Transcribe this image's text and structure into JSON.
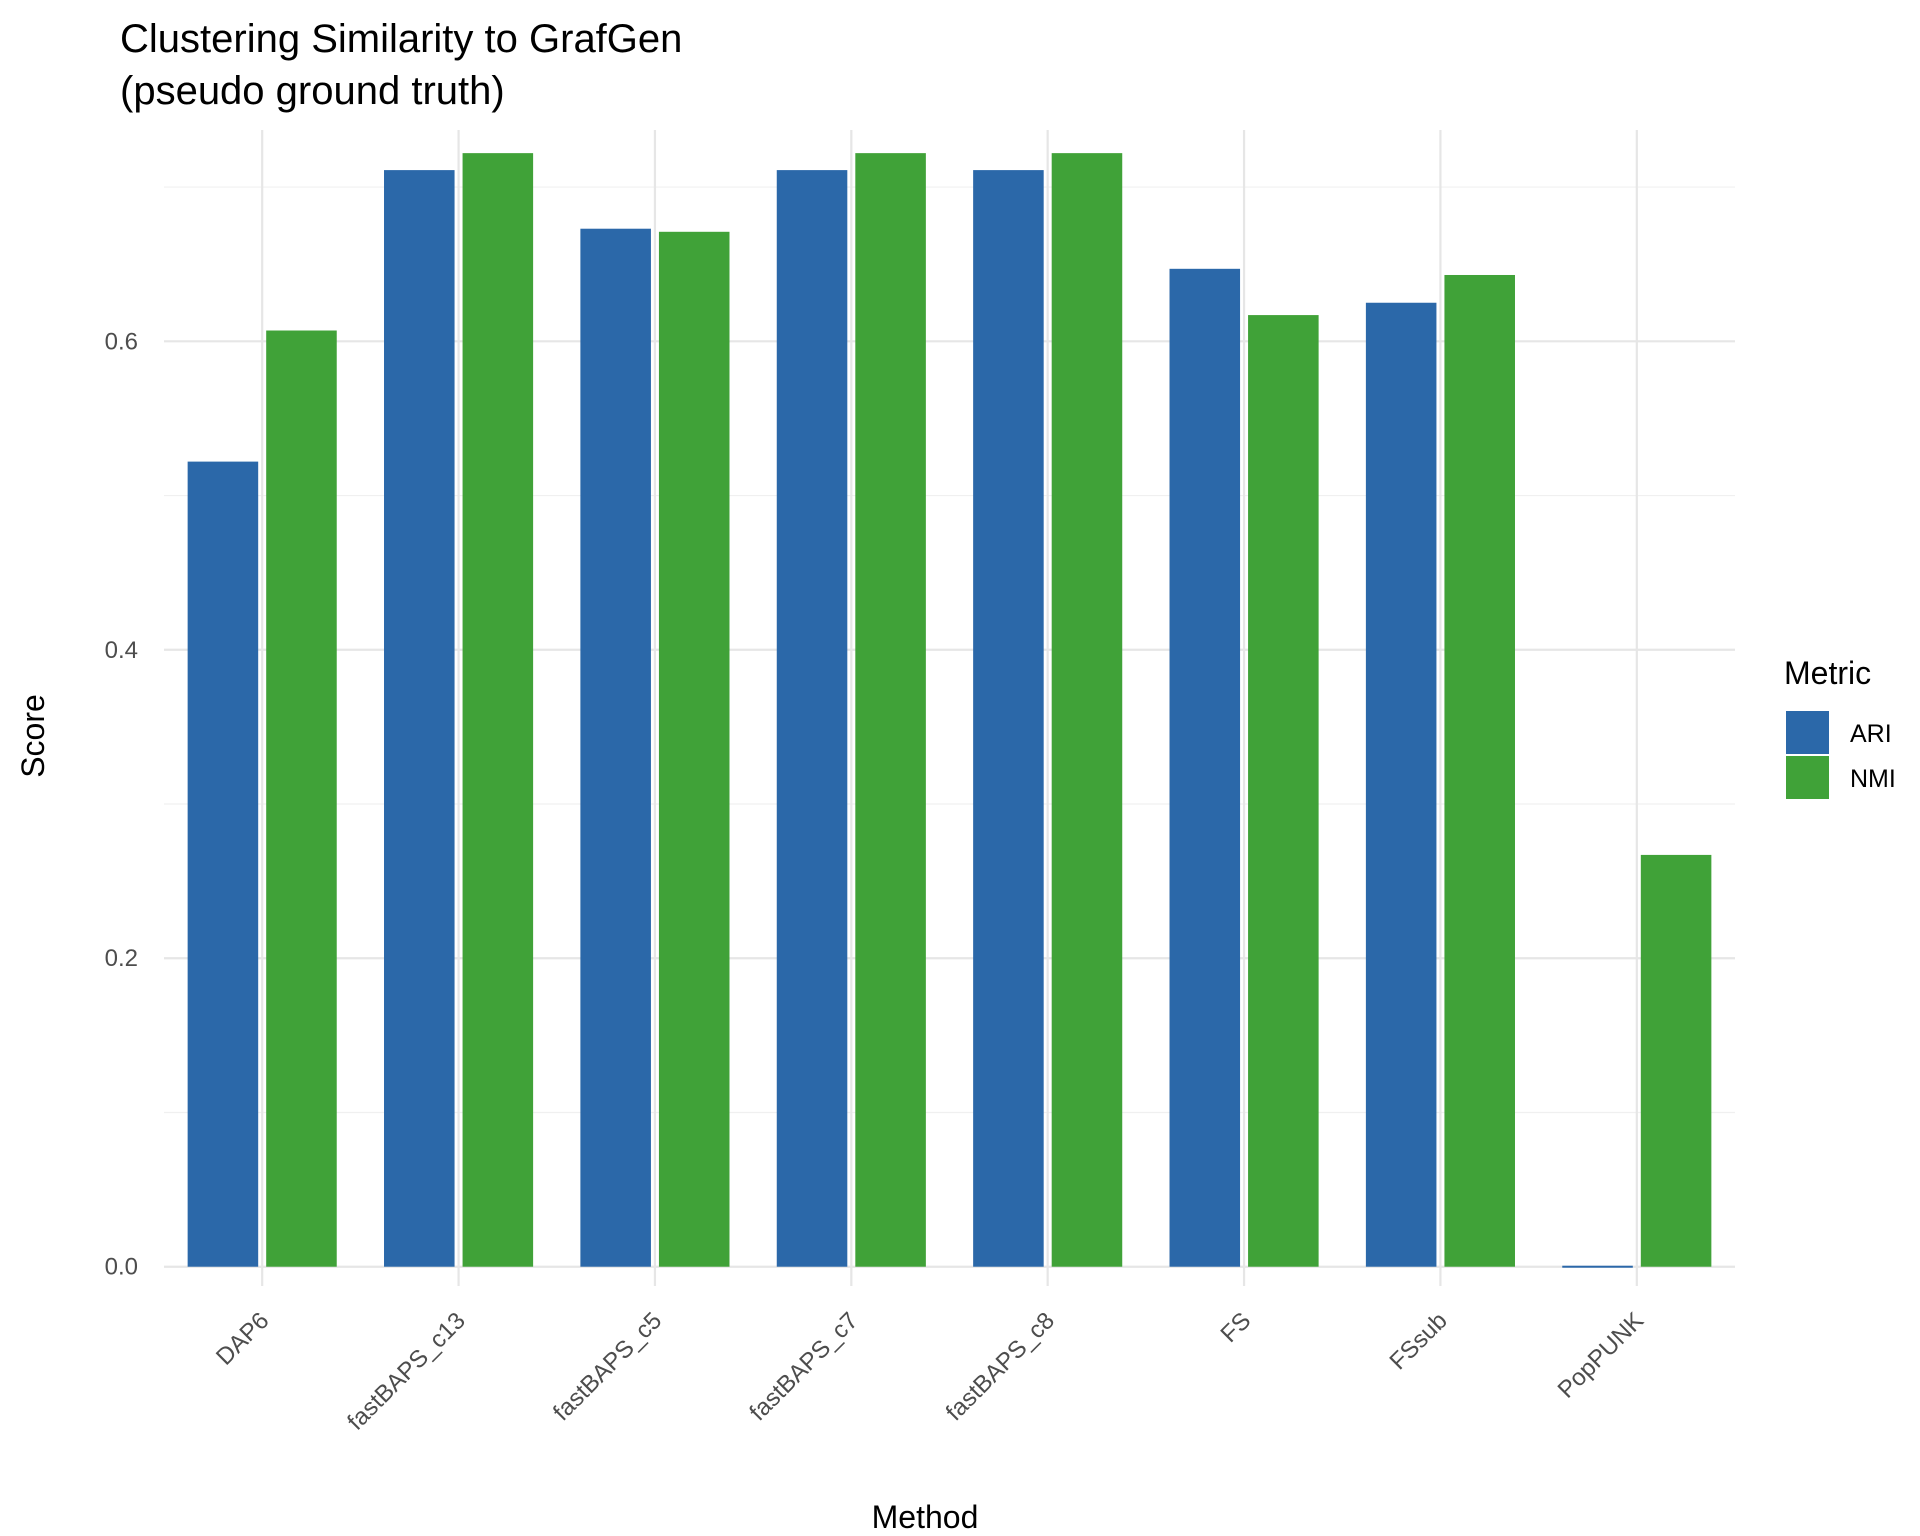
{
  "chart_data": {
    "type": "bar",
    "title": "Clustering Similarity to GrafGen",
    "subtitle": "(pseudo ground truth)",
    "xlabel": "Method",
    "ylabel": "Score",
    "ylim": [
      -0.0125,
      0.737
    ],
    "yticks": [
      0.0,
      0.2,
      0.4,
      0.6
    ],
    "ytick_labels": [
      "0.0",
      "0.2",
      "0.4",
      "0.6"
    ],
    "grid": true,
    "legend_title": "Metric",
    "legend_position": "right",
    "categories": [
      "DAP6",
      "fastBAPS_c13",
      "fastBAPS_c5",
      "fastBAPS_c7",
      "fastBAPS_c8",
      "FS",
      "FSsub",
      "PopPUNK"
    ],
    "series": [
      {
        "name": "ARI",
        "color": "#2b68a9",
        "values": [
          0.522,
          0.711,
          0.673,
          0.711,
          0.711,
          0.647,
          0.625,
          -0.001
        ]
      },
      {
        "name": "NMI",
        "color": "#40a238",
        "values": [
          0.607,
          0.722,
          0.671,
          0.722,
          0.722,
          0.617,
          0.643,
          0.267
        ]
      }
    ]
  }
}
